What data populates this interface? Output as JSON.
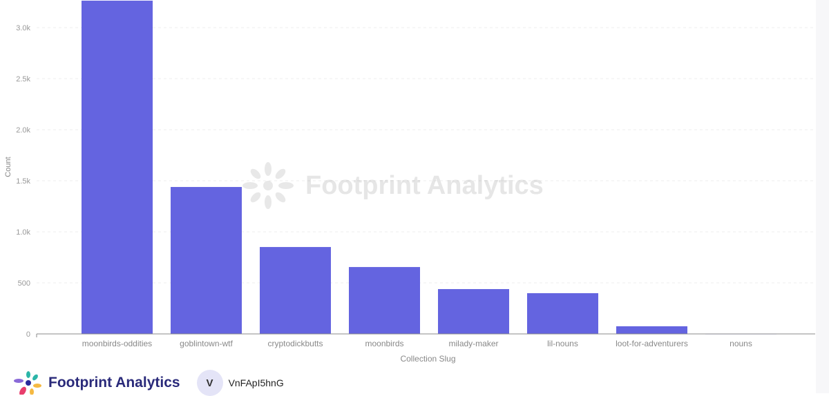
{
  "chart_data": {
    "type": "bar",
    "xlabel": "Collection Slug",
    "ylabel": "Count",
    "categories": [
      "moonbirds-oddities",
      "goblintown-wtf",
      "cryptodickbutts",
      "moonbirds",
      "milady-maker",
      "lil-nouns",
      "loot-for-adventurers",
      "nouns"
    ],
    "values": [
      3264,
      1439,
      851,
      655,
      439,
      399,
      75,
      3
    ],
    "ylim": [
      0,
      3270
    ],
    "yticks": [
      0,
      500,
      1000,
      1500,
      2000,
      2500,
      3000
    ],
    "ytick_labels": [
      "0",
      "500",
      "1.0k",
      "1.5k",
      "2.0k",
      "2.5k",
      "3.0k"
    ],
    "grid": true,
    "bar_color": "#6464e0"
  },
  "watermark": "Footprint Analytics",
  "footer": {
    "brand": "Footprint Analytics",
    "avatar_letter": "V",
    "username": "VnFApI5hnG"
  }
}
